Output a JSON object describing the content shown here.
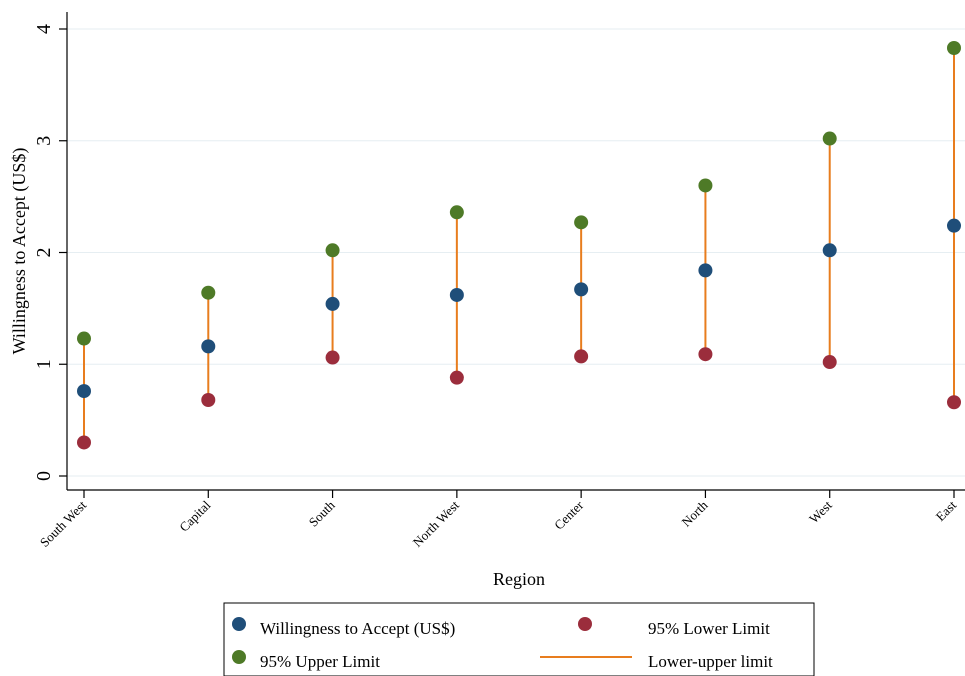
{
  "chart_data": {
    "type": "scatter",
    "xlabel": "Region",
    "ylabel": "Willingness to Accept (US$)",
    "ylim": [
      0,
      4
    ],
    "yticks": [
      "0",
      "1",
      "2",
      "3",
      "4"
    ],
    "grid": true,
    "legend_position": "bottom",
    "categories": [
      "South West",
      "Capital",
      "South",
      "North West",
      "Center",
      "North",
      "West",
      "East"
    ],
    "series": [
      {
        "name": "Willingness to Accept (US$)",
        "color": "#1f4e79",
        "values": [
          0.76,
          1.16,
          1.54,
          1.62,
          1.67,
          1.84,
          2.02,
          2.24
        ]
      },
      {
        "name": "95% Lower Limit",
        "color": "#9b2d3c",
        "values": [
          0.3,
          0.68,
          1.06,
          0.88,
          1.07,
          1.09,
          1.02,
          0.66
        ]
      },
      {
        "name": "95% Upper Limit",
        "color": "#4e7a27",
        "values": [
          1.23,
          1.64,
          2.02,
          2.36,
          2.27,
          2.6,
          3.02,
          3.83
        ]
      },
      {
        "name": "Lower-upper limit",
        "color": "#e87d1e"
      }
    ]
  }
}
